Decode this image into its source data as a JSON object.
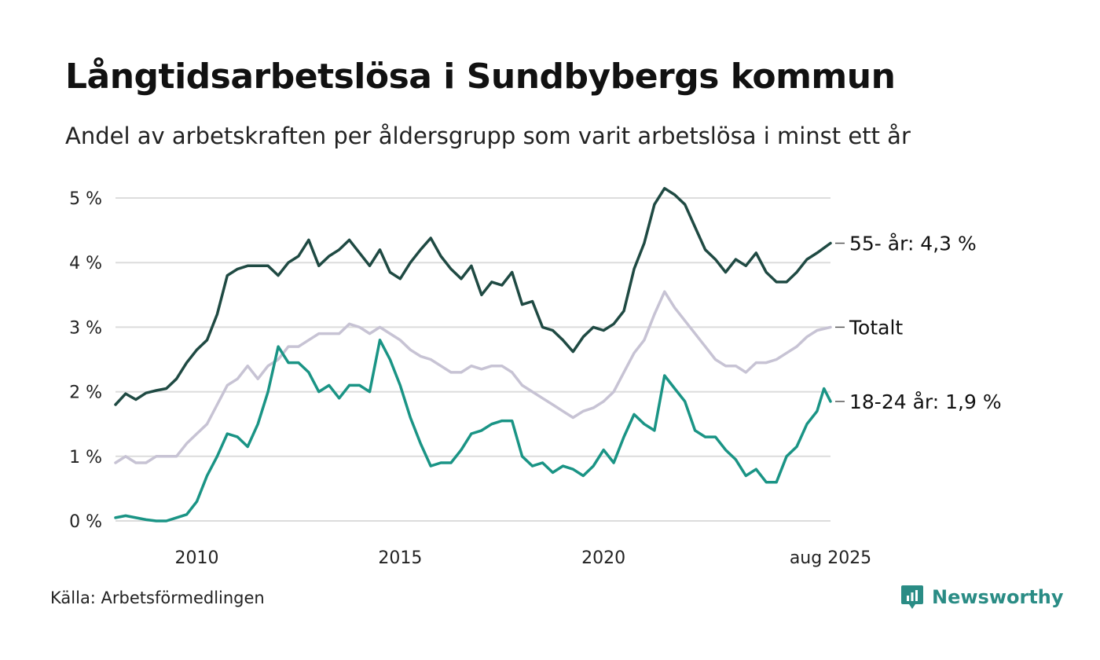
{
  "title": "Långtidsarbetslösa i Sundbybergs kommun",
  "subtitle": "Andel av arbetskraften per åldersgrupp som varit arbetslösa i minst ett år",
  "source": "Källa: Arbetsförmedlingen",
  "brand": "Newsworthy",
  "colors": {
    "older": "#1f4a43",
    "total": "#c7c3d4",
    "young": "#1a9485",
    "grid": "#dcdcdc",
    "brand": "#2a8c85"
  },
  "chart_data": {
    "type": "line",
    "x_range": [
      2008.0,
      2025.58
    ],
    "ylim": [
      0,
      5
    ],
    "y_ticks": [
      0,
      1,
      2,
      3,
      4,
      5
    ],
    "y_tick_labels": [
      "0 %",
      "1 %",
      "2 %",
      "3 %",
      "4 %",
      "5 %"
    ],
    "x_ticks": [
      2010,
      2015,
      2020,
      2025.58
    ],
    "x_tick_labels": [
      "2010",
      "2015",
      "2020",
      "aug 2025"
    ],
    "grid": "horizontal",
    "legend": "end-of-line labels",
    "series": [
      {
        "key": "older",
        "name": "55- år",
        "end_label": "55- år: 4,3 %",
        "points": [
          [
            2008.0,
            1.8
          ],
          [
            2008.25,
            1.97
          ],
          [
            2008.5,
            1.88
          ],
          [
            2008.75,
            1.98
          ],
          [
            2009.0,
            2.02
          ],
          [
            2009.25,
            2.05
          ],
          [
            2009.5,
            2.2
          ],
          [
            2009.75,
            2.45
          ],
          [
            2010.0,
            2.65
          ],
          [
            2010.25,
            2.8
          ],
          [
            2010.5,
            3.2
          ],
          [
            2010.75,
            3.8
          ],
          [
            2011.0,
            3.9
          ],
          [
            2011.25,
            3.95
          ],
          [
            2011.5,
            3.95
          ],
          [
            2011.75,
            3.95
          ],
          [
            2012.0,
            3.8
          ],
          [
            2012.25,
            4.0
          ],
          [
            2012.5,
            4.1
          ],
          [
            2012.75,
            4.35
          ],
          [
            2013.0,
            3.95
          ],
          [
            2013.25,
            4.1
          ],
          [
            2013.5,
            4.2
          ],
          [
            2013.75,
            4.35
          ],
          [
            2014.0,
            4.15
          ],
          [
            2014.25,
            3.95
          ],
          [
            2014.5,
            4.2
          ],
          [
            2014.75,
            3.85
          ],
          [
            2015.0,
            3.75
          ],
          [
            2015.25,
            4.0
          ],
          [
            2015.5,
            4.2
          ],
          [
            2015.75,
            4.38
          ],
          [
            2016.0,
            4.1
          ],
          [
            2016.25,
            3.9
          ],
          [
            2016.5,
            3.75
          ],
          [
            2016.75,
            3.95
          ],
          [
            2017.0,
            3.5
          ],
          [
            2017.25,
            3.7
          ],
          [
            2017.5,
            3.65
          ],
          [
            2017.75,
            3.85
          ],
          [
            2018.0,
            3.35
          ],
          [
            2018.25,
            3.4
          ],
          [
            2018.5,
            3.0
          ],
          [
            2018.75,
            2.95
          ],
          [
            2019.0,
            2.8
          ],
          [
            2019.25,
            2.62
          ],
          [
            2019.5,
            2.85
          ],
          [
            2019.75,
            3.0
          ],
          [
            2020.0,
            2.95
          ],
          [
            2020.25,
            3.05
          ],
          [
            2020.5,
            3.25
          ],
          [
            2020.75,
            3.9
          ],
          [
            2021.0,
            4.3
          ],
          [
            2021.25,
            4.9
          ],
          [
            2021.5,
            5.15
          ],
          [
            2021.75,
            5.05
          ],
          [
            2022.0,
            4.9
          ],
          [
            2022.25,
            4.55
          ],
          [
            2022.5,
            4.2
          ],
          [
            2022.75,
            4.05
          ],
          [
            2023.0,
            3.85
          ],
          [
            2023.25,
            4.05
          ],
          [
            2023.5,
            3.95
          ],
          [
            2023.75,
            4.15
          ],
          [
            2024.0,
            3.85
          ],
          [
            2024.25,
            3.7
          ],
          [
            2024.5,
            3.7
          ],
          [
            2024.75,
            3.85
          ],
          [
            2025.0,
            4.05
          ],
          [
            2025.25,
            4.15
          ],
          [
            2025.58,
            4.3
          ]
        ]
      },
      {
        "key": "total",
        "name": "Totalt",
        "end_label": "Totalt",
        "points": [
          [
            2008.0,
            0.9
          ],
          [
            2008.25,
            1.0
          ],
          [
            2008.5,
            0.9
          ],
          [
            2008.75,
            0.9
          ],
          [
            2009.0,
            1.0
          ],
          [
            2009.25,
            1.0
          ],
          [
            2009.5,
            1.0
          ],
          [
            2009.75,
            1.2
          ],
          [
            2010.0,
            1.35
          ],
          [
            2010.25,
            1.5
          ],
          [
            2010.5,
            1.8
          ],
          [
            2010.75,
            2.1
          ],
          [
            2011.0,
            2.2
          ],
          [
            2011.25,
            2.4
          ],
          [
            2011.5,
            2.2
          ],
          [
            2011.75,
            2.4
          ],
          [
            2012.0,
            2.5
          ],
          [
            2012.25,
            2.7
          ],
          [
            2012.5,
            2.7
          ],
          [
            2012.75,
            2.8
          ],
          [
            2013.0,
            2.9
          ],
          [
            2013.25,
            2.9
          ],
          [
            2013.5,
            2.9
          ],
          [
            2013.75,
            3.05
          ],
          [
            2014.0,
            3.0
          ],
          [
            2014.25,
            2.9
          ],
          [
            2014.5,
            3.0
          ],
          [
            2014.75,
            2.9
          ],
          [
            2015.0,
            2.8
          ],
          [
            2015.25,
            2.65
          ],
          [
            2015.5,
            2.55
          ],
          [
            2015.75,
            2.5
          ],
          [
            2016.0,
            2.4
          ],
          [
            2016.25,
            2.3
          ],
          [
            2016.5,
            2.3
          ],
          [
            2016.75,
            2.4
          ],
          [
            2017.0,
            2.35
          ],
          [
            2017.25,
            2.4
          ],
          [
            2017.5,
            2.4
          ],
          [
            2017.75,
            2.3
          ],
          [
            2018.0,
            2.1
          ],
          [
            2018.25,
            2.0
          ],
          [
            2018.5,
            1.9
          ],
          [
            2018.75,
            1.8
          ],
          [
            2019.0,
            1.7
          ],
          [
            2019.25,
            1.6
          ],
          [
            2019.5,
            1.7
          ],
          [
            2019.75,
            1.75
          ],
          [
            2020.0,
            1.85
          ],
          [
            2020.25,
            2.0
          ],
          [
            2020.5,
            2.3
          ],
          [
            2020.75,
            2.6
          ],
          [
            2021.0,
            2.8
          ],
          [
            2021.25,
            3.2
          ],
          [
            2021.5,
            3.55
          ],
          [
            2021.75,
            3.3
          ],
          [
            2022.0,
            3.1
          ],
          [
            2022.25,
            2.9
          ],
          [
            2022.5,
            2.7
          ],
          [
            2022.75,
            2.5
          ],
          [
            2023.0,
            2.4
          ],
          [
            2023.25,
            2.4
          ],
          [
            2023.5,
            2.3
          ],
          [
            2023.75,
            2.45
          ],
          [
            2024.0,
            2.45
          ],
          [
            2024.25,
            2.5
          ],
          [
            2024.5,
            2.6
          ],
          [
            2024.75,
            2.7
          ],
          [
            2025.0,
            2.85
          ],
          [
            2025.25,
            2.95
          ],
          [
            2025.58,
            3.0
          ]
        ]
      },
      {
        "key": "young",
        "name": "18-24 år",
        "end_label": "18-24 år: 1,9 %",
        "points": [
          [
            2008.0,
            0.05
          ],
          [
            2008.25,
            0.08
          ],
          [
            2008.5,
            0.05
          ],
          [
            2008.75,
            0.02
          ],
          [
            2009.0,
            0.0
          ],
          [
            2009.25,
            0.0
          ],
          [
            2009.5,
            0.05
          ],
          [
            2009.75,
            0.1
          ],
          [
            2010.0,
            0.3
          ],
          [
            2010.25,
            0.7
          ],
          [
            2010.5,
            1.0
          ],
          [
            2010.75,
            1.35
          ],
          [
            2011.0,
            1.3
          ],
          [
            2011.25,
            1.15
          ],
          [
            2011.5,
            1.5
          ],
          [
            2011.75,
            2.0
          ],
          [
            2012.0,
            2.7
          ],
          [
            2012.25,
            2.45
          ],
          [
            2012.5,
            2.45
          ],
          [
            2012.75,
            2.3
          ],
          [
            2013.0,
            2.0
          ],
          [
            2013.25,
            2.1
          ],
          [
            2013.5,
            1.9
          ],
          [
            2013.75,
            2.1
          ],
          [
            2014.0,
            2.1
          ],
          [
            2014.25,
            2.0
          ],
          [
            2014.5,
            2.8
          ],
          [
            2014.75,
            2.5
          ],
          [
            2015.0,
            2.1
          ],
          [
            2015.25,
            1.6
          ],
          [
            2015.5,
            1.2
          ],
          [
            2015.75,
            0.85
          ],
          [
            2016.0,
            0.9
          ],
          [
            2016.25,
            0.9
          ],
          [
            2016.5,
            1.1
          ],
          [
            2016.75,
            1.35
          ],
          [
            2017.0,
            1.4
          ],
          [
            2017.25,
            1.5
          ],
          [
            2017.5,
            1.55
          ],
          [
            2017.75,
            1.55
          ],
          [
            2018.0,
            1.0
          ],
          [
            2018.25,
            0.85
          ],
          [
            2018.5,
            0.9
          ],
          [
            2018.75,
            0.75
          ],
          [
            2019.0,
            0.85
          ],
          [
            2019.25,
            0.8
          ],
          [
            2019.5,
            0.7
          ],
          [
            2019.75,
            0.85
          ],
          [
            2020.0,
            1.1
          ],
          [
            2020.25,
            0.9
          ],
          [
            2020.5,
            1.3
          ],
          [
            2020.75,
            1.65
          ],
          [
            2021.0,
            1.5
          ],
          [
            2021.25,
            1.4
          ],
          [
            2021.5,
            2.25
          ],
          [
            2021.75,
            2.05
          ],
          [
            2022.0,
            1.85
          ],
          [
            2022.25,
            1.4
          ],
          [
            2022.5,
            1.3
          ],
          [
            2022.75,
            1.3
          ],
          [
            2023.0,
            1.1
          ],
          [
            2023.25,
            0.95
          ],
          [
            2023.5,
            0.7
          ],
          [
            2023.75,
            0.8
          ],
          [
            2024.0,
            0.6
          ],
          [
            2024.25,
            0.6
          ],
          [
            2024.5,
            1.0
          ],
          [
            2024.75,
            1.15
          ],
          [
            2025.0,
            1.5
          ],
          [
            2025.25,
            1.7
          ],
          [
            2025.42,
            2.05
          ],
          [
            2025.58,
            1.85
          ]
        ]
      }
    ]
  }
}
